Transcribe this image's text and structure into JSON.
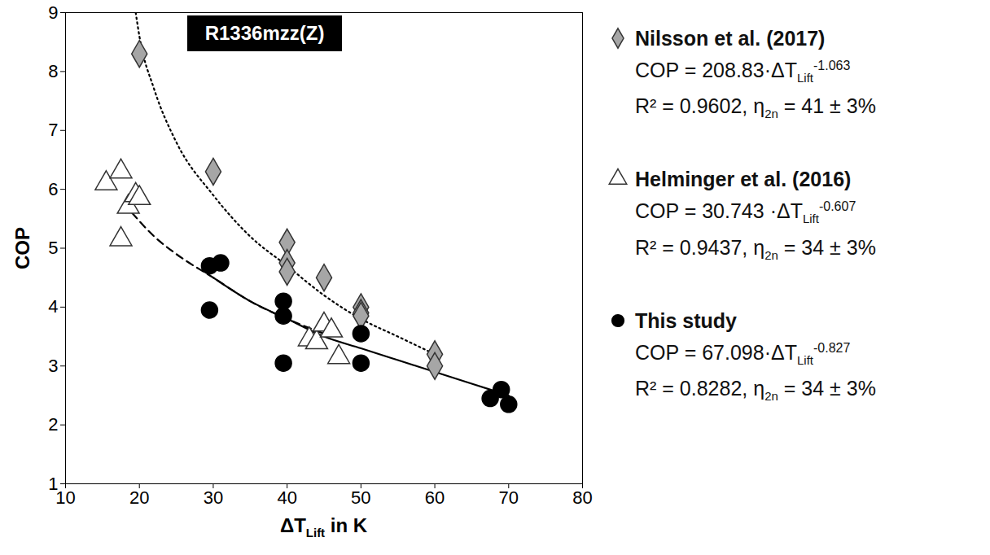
{
  "chart_data": {
    "type": "scatter",
    "title": "R1336mzz(Z)",
    "x_label": {
      "text": "ΔT",
      "sub": "Lift",
      "after": " in K"
    },
    "y_label": "COP",
    "xlim": [
      10,
      80
    ],
    "xticks": [
      10,
      20,
      30,
      40,
      50,
      60,
      70,
      80
    ],
    "ylim": [
      1,
      9
    ],
    "yticks": [
      1,
      2,
      3,
      4,
      5,
      6,
      7,
      8,
      9
    ],
    "legend": "right",
    "series": [
      {
        "name": "Nilsson et al. (2017)",
        "color": "#a6a6a6",
        "marker": "diamond",
        "line_style": "dotted",
        "x": [
          20,
          30,
          40,
          40,
          40,
          45,
          50,
          50,
          50,
          60,
          60
        ],
        "y": [
          8.3,
          6.3,
          5.1,
          4.75,
          4.6,
          4.5,
          4.0,
          3.9,
          3.85,
          3.2,
          3.0
        ],
        "fit": {
          "x": [
            19.5,
            20,
            22,
            25,
            30,
            35,
            40,
            45,
            50,
            55,
            60
          ],
          "y": [
            9.0,
            8.6,
            7.7,
            6.8,
            5.9,
            5.2,
            4.7,
            4.2,
            3.8,
            3.5,
            3.2
          ]
        },
        "equation": {
          "text": "COP = 208.83·ΔT",
          "sub": "Lift",
          "sup": "-1.063"
        },
        "stats": {
          "text": "R² = 0.9602, η",
          "sub": "2n",
          "after": " = 41 ± 3%"
        }
      },
      {
        "name": "Helminger et al. (2016)",
        "color": "#ffffff",
        "marker": "triangle",
        "line_style": "dashed",
        "x": [
          15.5,
          17.5,
          17.5,
          18.5,
          19.5,
          20,
          43,
          44,
          45,
          46,
          47
        ],
        "y": [
          6.1,
          6.3,
          5.15,
          5.7,
          5.9,
          5.85,
          3.45,
          3.4,
          3.7,
          3.6,
          3.15
        ],
        "fit": {
          "x": [
            19,
            22,
            25,
            30,
            35,
            40,
            45
          ],
          "y": [
            5.6,
            5.2,
            4.9,
            4.5,
            4.1,
            3.8,
            3.55
          ]
        },
        "equation": {
          "text": "COP = 30.743 ·ΔT",
          "sub": "Lift",
          "sup": "-0.607"
        },
        "stats": {
          "text": "R² = 0.9437, η",
          "sub": "2n",
          "after": " = 34 ± 3%"
        }
      },
      {
        "name": "This study",
        "color": "#000000",
        "marker": "circle",
        "line_style": "solid",
        "x": [
          29.5,
          31,
          29.5,
          39.5,
          39.5,
          39.5,
          50,
          50,
          67.5,
          69,
          70
        ],
        "y": [
          4.7,
          4.75,
          3.95,
          4.1,
          3.85,
          3.05,
          3.55,
          3.05,
          2.45,
          2.6,
          2.35
        ],
        "fit": {
          "x": [
            30,
            35,
            40,
            45,
            50,
            55,
            60,
            65,
            70
          ],
          "y": [
            4.5,
            4.1,
            3.8,
            3.5,
            3.3,
            3.1,
            2.9,
            2.7,
            2.5
          ]
        },
        "equation": {
          "text": "COP = 67.098·ΔT",
          "sub": "Lift",
          "sup": "-0.827"
        },
        "stats": {
          "text": "R² = 0.8282, η",
          "sub": "2n",
          "after": " = 34 ± 3%"
        }
      }
    ]
  }
}
